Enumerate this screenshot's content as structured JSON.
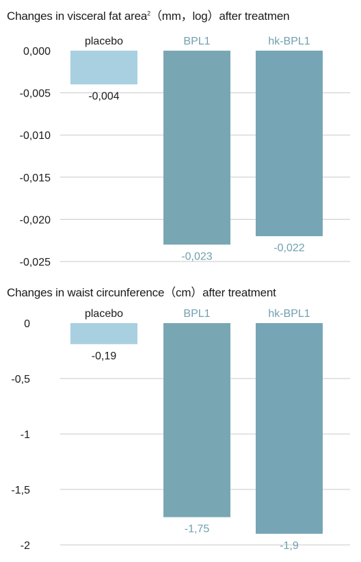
{
  "colors": {
    "placebo": "#a8d0e0",
    "bpl1": "#78a7b3",
    "hk_bpl1": "#76a5b5",
    "grid": "#c8c8c8",
    "label_dark": "#1a1a1a",
    "label_teal": "#6f9fae"
  },
  "chart_data": [
    {
      "type": "bar",
      "title_prefix": "Changes in visceral fat area",
      "title_sup": "2",
      "title_suffix": "（mm，log）after treatmen",
      "categories": [
        "placebo",
        "BPL1",
        "hk-BPL1"
      ],
      "values": [
        -0.004,
        -0.023,
        -0.022
      ],
      "value_labels": [
        "-0,004",
        "-0,023",
        "-0,022"
      ],
      "yticks": [
        0.0,
        -0.005,
        -0.01,
        -0.015,
        -0.02,
        -0.025
      ],
      "ytick_labels": [
        "0,000",
        "-0,005",
        "-0,010",
        "-0,015",
        "-0,020",
        "-0,025"
      ],
      "ylim": [
        -0.025,
        0.0
      ],
      "grid": true
    },
    {
      "type": "bar",
      "title_prefix": "Changes in waist circunference（cm）after treatment",
      "title_sup": "",
      "title_suffix": "",
      "categories": [
        "placebo",
        "BPL1",
        "hk-BPL1"
      ],
      "values": [
        -0.19,
        -1.75,
        -1.9
      ],
      "value_labels": [
        "-0,19",
        "-1,75",
        "-1,9"
      ],
      "yticks": [
        0,
        -0.5,
        -1,
        -1.5,
        -2
      ],
      "ytick_labels": [
        "0",
        "-0,5",
        "-1",
        "-1,5",
        "-2"
      ],
      "ylim": [
        -2,
        0
      ],
      "grid": true
    }
  ]
}
